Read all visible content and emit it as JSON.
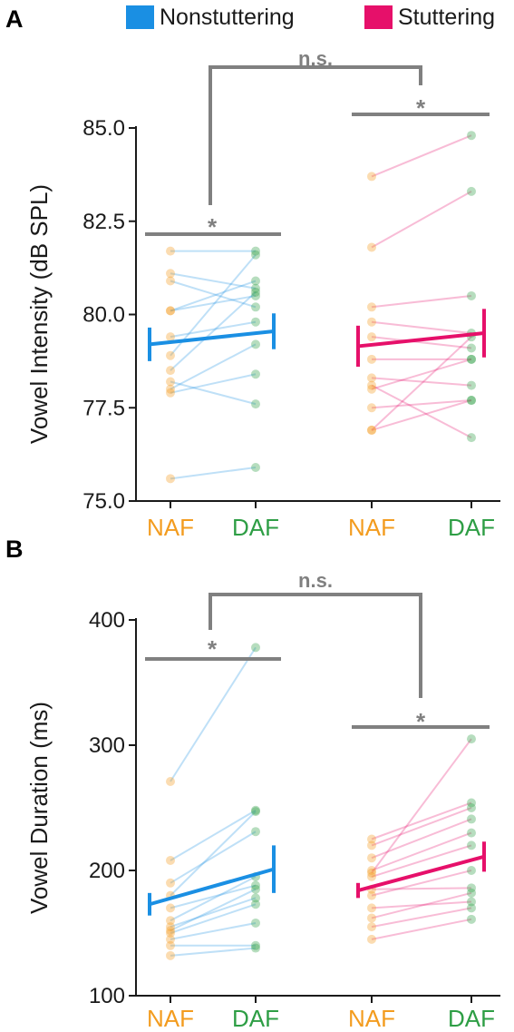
{
  "legend": {
    "nonstuttering_label": "Nonstuttering",
    "stuttering_label": "Stuttering"
  },
  "colors": {
    "nonstuttering": "#1a8fe3",
    "stuttering": "#e6106a",
    "naf": "#f39c1f",
    "daf": "#2e9e45",
    "significance": "#808080",
    "axis": "#1a1a1a"
  },
  "chart_data": [
    {
      "panel_label": "A",
      "type": "scatter",
      "ylabel": "Vowel Intensity (dB SPL)",
      "ylim": [
        75.0,
        85.0
      ],
      "yticks": [
        "75.0",
        "77.5",
        "80.0",
        "82.5",
        "85.0"
      ],
      "categories": [
        "NAF",
        "DAF",
        "NAF",
        "DAF"
      ],
      "groups": [
        {
          "name": "Nonstuttering",
          "pairs": [
            [
              75.6,
              75.9
            ],
            [
              77.9,
              78.4
            ],
            [
              78.0,
              79.2
            ],
            [
              78.2,
              77.6
            ],
            [
              78.5,
              80.6
            ],
            [
              78.9,
              81.6
            ],
            [
              79.4,
              79.8
            ],
            [
              80.1,
              80.5
            ],
            [
              80.1,
              80.9
            ],
            [
              80.9,
              80.2
            ],
            [
              81.1,
              80.7
            ],
            [
              81.7,
              81.7
            ]
          ],
          "mean": [
            79.2,
            79.55
          ],
          "error": [
            0.45,
            0.48
          ]
        },
        {
          "name": "Stuttering",
          "pairs": [
            [
              76.9,
              79.4
            ],
            [
              76.9,
              77.7
            ],
            [
              77.5,
              77.7
            ],
            [
              78.0,
              78.8
            ],
            [
              78.1,
              76.7
            ],
            [
              78.3,
              78.1
            ],
            [
              78.8,
              78.8
            ],
            [
              79.4,
              79.1
            ],
            [
              79.8,
              79.5
            ],
            [
              80.2,
              80.5
            ],
            [
              81.8,
              83.3
            ],
            [
              83.7,
              84.8
            ]
          ],
          "mean": [
            79.15,
            79.5
          ],
          "error": [
            0.55,
            0.65
          ]
        }
      ],
      "significance": {
        "within_nonstuttering": "*",
        "within_stuttering": "*",
        "between_groups": "n.s."
      }
    },
    {
      "panel_label": "B",
      "type": "scatter",
      "ylabel": "Vowel Duration (ms)",
      "ylim": [
        100,
        400
      ],
      "yticks": [
        "100",
        "200",
        "300",
        "400"
      ],
      "categories": [
        "NAF",
        "DAF",
        "NAF",
        "DAF"
      ],
      "groups": [
        {
          "name": "Nonstuttering",
          "pairs": [
            [
              132,
              138
            ],
            [
              140,
              140
            ],
            [
              145,
              158
            ],
            [
              150,
              173
            ],
            [
              152,
              185
            ],
            [
              155,
              178
            ],
            [
              160,
              195
            ],
            [
              170,
              188
            ],
            [
              180,
              247
            ],
            [
              190,
              231
            ],
            [
              208,
              248
            ],
            [
              271,
              378
            ]
          ],
          "mean": [
            173,
            201
          ],
          "error": [
            9,
            19
          ]
        },
        {
          "name": "Stuttering",
          "pairs": [
            [
              145,
              161
            ],
            [
              155,
              170
            ],
            [
              162,
              182
            ],
            [
              170,
              175
            ],
            [
              180,
              200
            ],
            [
              185,
              186
            ],
            [
              195,
              220
            ],
            [
              200,
              230
            ],
            [
              210,
              241
            ],
            [
              220,
              250
            ],
            [
              225,
              254
            ],
            [
              198,
              305
            ]
          ],
          "mean": [
            184,
            211
          ],
          "error": [
            6,
            12
          ]
        }
      ],
      "significance": {
        "within_nonstuttering": "*",
        "within_stuttering": "*",
        "between_groups": "n.s."
      }
    }
  ]
}
